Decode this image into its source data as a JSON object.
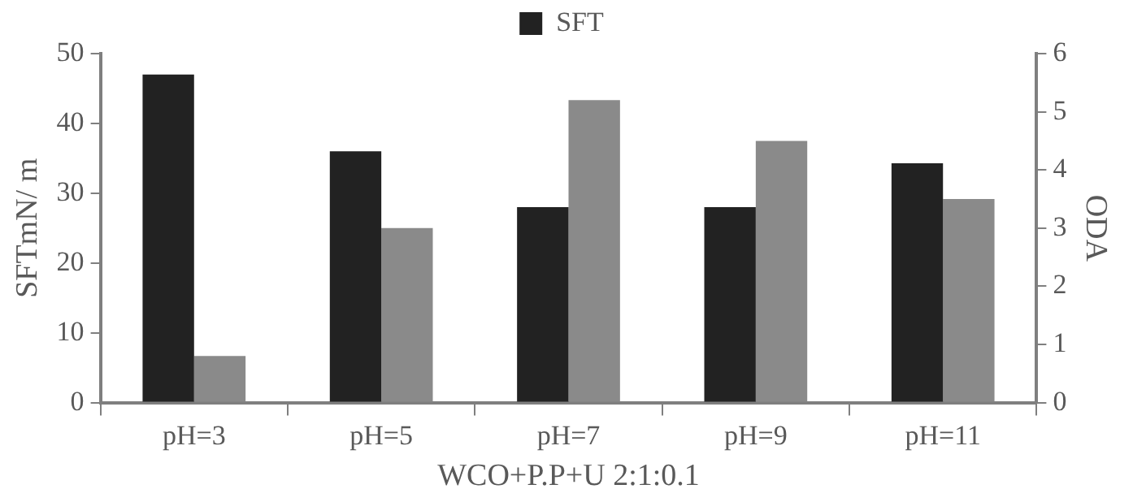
{
  "chart_data": {
    "type": "bar",
    "xlabel": "WCO+P.P+U 2:1:0.1",
    "ylabel": "SFTmN/ m",
    "y2label": "ODA",
    "categories": [
      "pH=3",
      "pH=5",
      "pH=7",
      "pH=9",
      "pH=11"
    ],
    "series": [
      {
        "name": "SFT",
        "color": "#222222",
        "values": [
          47,
          36,
          28,
          28,
          34.3
        ]
      },
      {
        "color": "#8a8a8a",
        "axis": "y2",
        "values": [
          0.8,
          3.0,
          5.2,
          4.5,
          3.5
        ]
      }
    ],
    "ylim": [
      0,
      50
    ],
    "yticks": [
      0,
      10,
      20,
      30,
      40,
      50
    ],
    "y2lim": [
      0,
      6
    ],
    "y2ticks": [
      0,
      1,
      2,
      3,
      4,
      5,
      6
    ],
    "grid": false,
    "legend": "top"
  }
}
